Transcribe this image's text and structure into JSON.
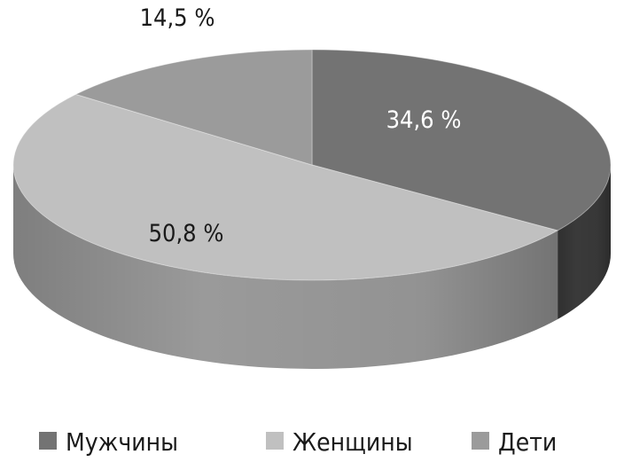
{
  "chart_data": {
    "type": "pie",
    "style": "3d",
    "categories": [
      "Мужчины",
      "Женщины",
      "Дети"
    ],
    "values": [
      34.6,
      50.8,
      14.5
    ],
    "labels": [
      "34,6 %",
      "50,8 %",
      "14,5 %"
    ],
    "colors": [
      "#737373",
      "#c0c0c0",
      "#9b9b9b"
    ],
    "side_colors": [
      "#3a3a3a",
      "#9a9a9a",
      "#7a7a7a"
    ],
    "label_colors": [
      "#ffffff",
      "#1a1a1a",
      "#1a1a1a"
    ],
    "start_angle": "12 o'clock",
    "direction": "clockwise",
    "legend_position": "bottom",
    "title": ""
  }
}
